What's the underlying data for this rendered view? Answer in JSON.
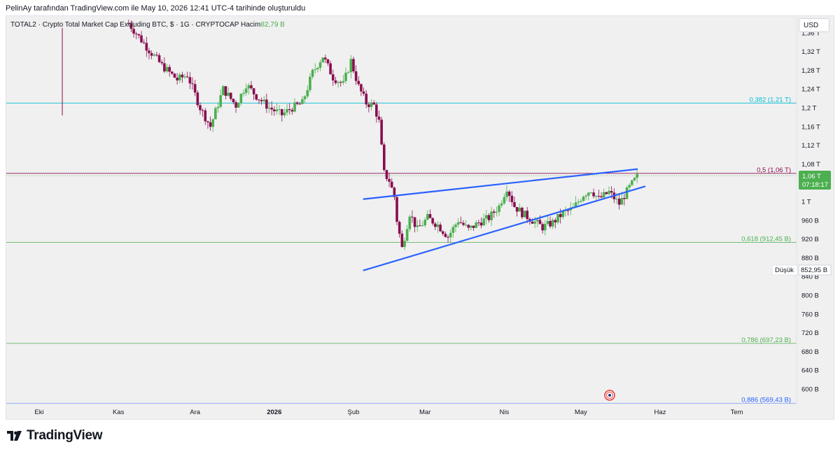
{
  "caption": "PelinAy tarafından TradingView.com ile May 10, 2026 12:41 UTC-4 tarihinde oluşturuldu",
  "symbol": {
    "text": "TOTAL2 · Crypto Total Market Cap Excluding BTC, $ · 1G · CRYPTOCAP",
    "volume_label": "Hacim",
    "volume_value": "82,79 B"
  },
  "currency_button": "USD",
  "brand": "TradingView",
  "price_badge": {
    "price": "1,06 T",
    "countdown": "07:18:17",
    "color": "#4caf50"
  },
  "low_marker": {
    "label": "Düşük",
    "value": "852,95 B"
  },
  "colors": {
    "up": "#4caf50",
    "down": "#880e4f",
    "trendline": "#2962ff",
    "background": "#f0f0f0"
  },
  "chart_data": {
    "type": "candlestick",
    "y_axis_ticks": [
      "1,36 T",
      "1,32 T",
      "1,28 T",
      "1,24 T",
      "1,2 T",
      "1,16 T",
      "1,12 T",
      "1,08 T",
      "1 T",
      "960 B",
      "920 B",
      "880 B",
      "840 B",
      "800 B",
      "760 B",
      "720 B",
      "680 B",
      "640 B",
      "600 B"
    ],
    "y_axis_values": [
      1360,
      1320,
      1280,
      1240,
      1200,
      1160,
      1120,
      1080,
      1000,
      960,
      920,
      880,
      840,
      800,
      760,
      720,
      680,
      640,
      600
    ],
    "y_range_billions": [
      570,
      1375
    ],
    "x_axis_labels": [
      "Eki",
      "Kas",
      "Ara",
      "2026",
      "Şub",
      "Mar",
      "Nis",
      "May",
      "Haz",
      "Tem"
    ],
    "x_axis_dates": [
      "2025-10-01",
      "2025-11-01",
      "2025-12-01",
      "2026-01-01",
      "2026-02-01",
      "2026-03-01",
      "2026-04-01",
      "2026-05-01",
      "2026-06-01",
      "2026-07-01"
    ],
    "fib_levels": [
      {
        "label": "0,382 (1,21 T)",
        "value": 1210,
        "color": "#00bcd4"
      },
      {
        "label": "0,5 (1,06 T)",
        "value": 1060,
        "color": "#880e4f"
      },
      {
        "label": "0,618 (912,45 B)",
        "value": 912.45,
        "color": "#4caf50"
      },
      {
        "label": "0,786 (697,23 B)",
        "value": 697.23,
        "color": "#4caf50"
      },
      {
        "label": "0,886 (569,43 B)",
        "value": 569.43,
        "color": "#2962ff"
      }
    ],
    "trendlines": [
      {
        "name": "upper",
        "from": [
          "2026-02-05",
          1005
        ],
        "to": [
          "2026-05-23",
          1069
        ]
      },
      {
        "name": "lower",
        "from": [
          "2026-02-05",
          853
        ],
        "to": [
          "2026-05-26",
          1032
        ]
      }
    ],
    "ohlc_path": [
      [
        "2025-11-05",
        1380
      ],
      [
        "2025-11-12",
        1330
      ],
      [
        "2025-11-18",
        1290
      ],
      [
        "2025-11-24",
        1260
      ],
      [
        "2025-11-28",
        1270
      ],
      [
        "2025-12-03",
        1200
      ],
      [
        "2025-12-07",
        1160
      ],
      [
        "2025-12-12",
        1240
      ],
      [
        "2025-12-17",
        1205
      ],
      [
        "2025-12-21",
        1250
      ],
      [
        "2025-12-25",
        1225
      ],
      [
        "2025-12-30",
        1200
      ],
      [
        "2026-01-04",
        1185
      ],
      [
        "2026-01-08",
        1200
      ],
      [
        "2026-01-12",
        1210
      ],
      [
        "2026-01-16",
        1275
      ],
      [
        "2026-01-20",
        1310
      ],
      [
        "2026-01-24",
        1265
      ],
      [
        "2026-01-28",
        1250
      ],
      [
        "2026-01-31",
        1300
      ],
      [
        "2026-02-03",
        1245
      ],
      [
        "2026-02-06",
        1210
      ],
      [
        "2026-02-09",
        1205
      ],
      [
        "2026-02-11",
        1170
      ],
      [
        "2026-02-13",
        1060
      ],
      [
        "2026-02-15",
        1045
      ],
      [
        "2026-02-17",
        1010
      ],
      [
        "2026-02-18",
        960
      ],
      [
        "2026-02-20",
        900
      ],
      [
        "2026-02-23",
        975
      ],
      [
        "2026-02-26",
        940
      ],
      [
        "2026-03-02",
        965
      ],
      [
        "2026-03-06",
        950
      ],
      [
        "2026-03-10",
        925
      ],
      [
        "2026-03-14",
        960
      ],
      [
        "2026-03-18",
        940
      ],
      [
        "2026-03-22",
        955
      ],
      [
        "2026-03-26",
        965
      ],
      [
        "2026-03-30",
        990
      ],
      [
        "2026-04-02",
        1030
      ],
      [
        "2026-04-05",
        990
      ],
      [
        "2026-04-08",
        975
      ],
      [
        "2026-04-12",
        960
      ],
      [
        "2026-04-16",
        945
      ],
      [
        "2026-04-20",
        955
      ],
      [
        "2026-04-24",
        975
      ],
      [
        "2026-04-28",
        985
      ],
      [
        "2026-05-02",
        1015
      ],
      [
        "2026-05-05",
        1025
      ],
      [
        "2026-05-08",
        1005
      ],
      [
        "2026-05-12",
        1020
      ],
      [
        "2026-05-16",
        995
      ],
      [
        "2026-05-20",
        1030
      ],
      [
        "2026-05-24",
        1060
      ]
    ],
    "grid": false
  }
}
